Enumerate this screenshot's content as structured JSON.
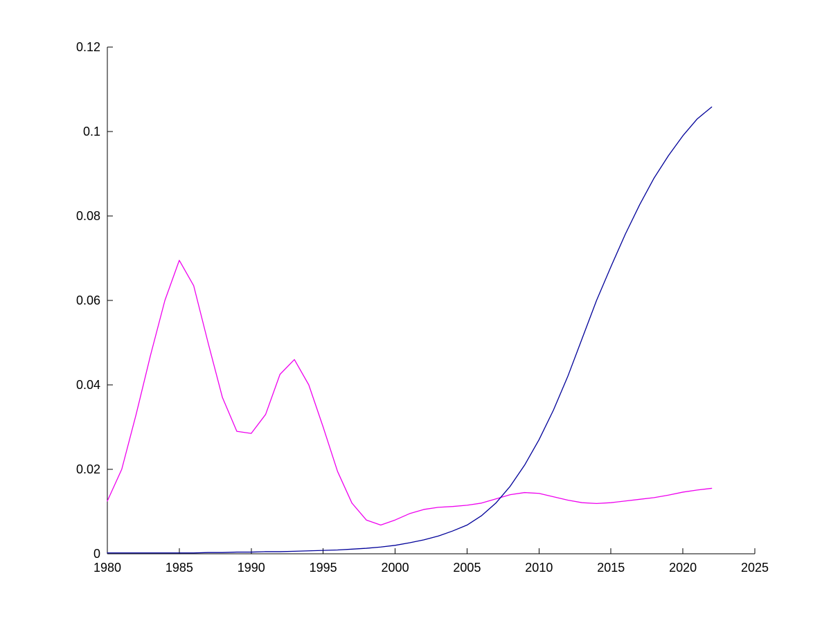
{
  "chart_data": {
    "type": "line",
    "title": "",
    "xlabel": "",
    "ylabel": "",
    "xlim": [
      1980,
      2025
    ],
    "ylim": [
      0,
      0.12
    ],
    "grid": false,
    "legend": "none",
    "xticks": [
      1980,
      1985,
      1990,
      1995,
      2000,
      2005,
      2010,
      2015,
      2020,
      2025
    ],
    "xtick_labels": [
      "1980",
      "1985",
      "1990",
      "1995",
      "2000",
      "2005",
      "2010",
      "2015",
      "2020",
      "2025"
    ],
    "yticks": [
      0,
      0.02,
      0.04,
      0.06,
      0.08,
      0.1,
      0.12
    ],
    "ytick_labels": [
      "0",
      "0.02",
      "0.04",
      "0.06",
      "0.08",
      "0.1",
      "0.12"
    ],
    "x": [
      1980,
      1981,
      1982,
      1983,
      1984,
      1985,
      1986,
      1987,
      1988,
      1989,
      1990,
      1991,
      1992,
      1993,
      1994,
      1995,
      1996,
      1997,
      1998,
      1999,
      2000,
      2001,
      2002,
      2003,
      2004,
      2005,
      2006,
      2007,
      2008,
      2009,
      2010,
      2011,
      2012,
      2013,
      2014,
      2015,
      2016,
      2017,
      2018,
      2019,
      2020,
      2021,
      2022
    ],
    "series": [
      {
        "name": "magenta-series",
        "color": "#ee00ee",
        "values": [
          0.0125,
          0.02,
          0.033,
          0.047,
          0.06,
          0.0695,
          0.0635,
          0.05,
          0.037,
          0.029,
          0.0285,
          0.033,
          0.0425,
          0.046,
          0.04,
          0.03,
          0.0195,
          0.012,
          0.008,
          0.0068,
          0.008,
          0.0095,
          0.0105,
          0.011,
          0.0112,
          0.0115,
          0.012,
          0.013,
          0.014,
          0.0145,
          0.0143,
          0.0135,
          0.0127,
          0.0121,
          0.0119,
          0.0121,
          0.0125,
          0.0129,
          0.0133,
          0.0139,
          0.0146,
          0.0151,
          0.0155
        ]
      },
      {
        "name": "blue-series",
        "color": "#000099",
        "values": [
          0.0002,
          0.0002,
          0.0002,
          0.0002,
          0.0002,
          0.0002,
          0.0002,
          0.0003,
          0.0003,
          0.0004,
          0.0004,
          0.0005,
          0.0005,
          0.0006,
          0.0007,
          0.0008,
          0.0009,
          0.0011,
          0.0013,
          0.0016,
          0.002,
          0.0026,
          0.0033,
          0.0042,
          0.0054,
          0.0068,
          0.009,
          0.012,
          0.016,
          0.021,
          0.027,
          0.034,
          0.042,
          0.051,
          0.06,
          0.068,
          0.0757,
          0.0827,
          0.089,
          0.0943,
          0.099,
          0.103,
          0.1058
        ]
      }
    ]
  },
  "colors": {
    "background": "#ffffff",
    "axis": "#000000",
    "tick_label": "#000000"
  }
}
